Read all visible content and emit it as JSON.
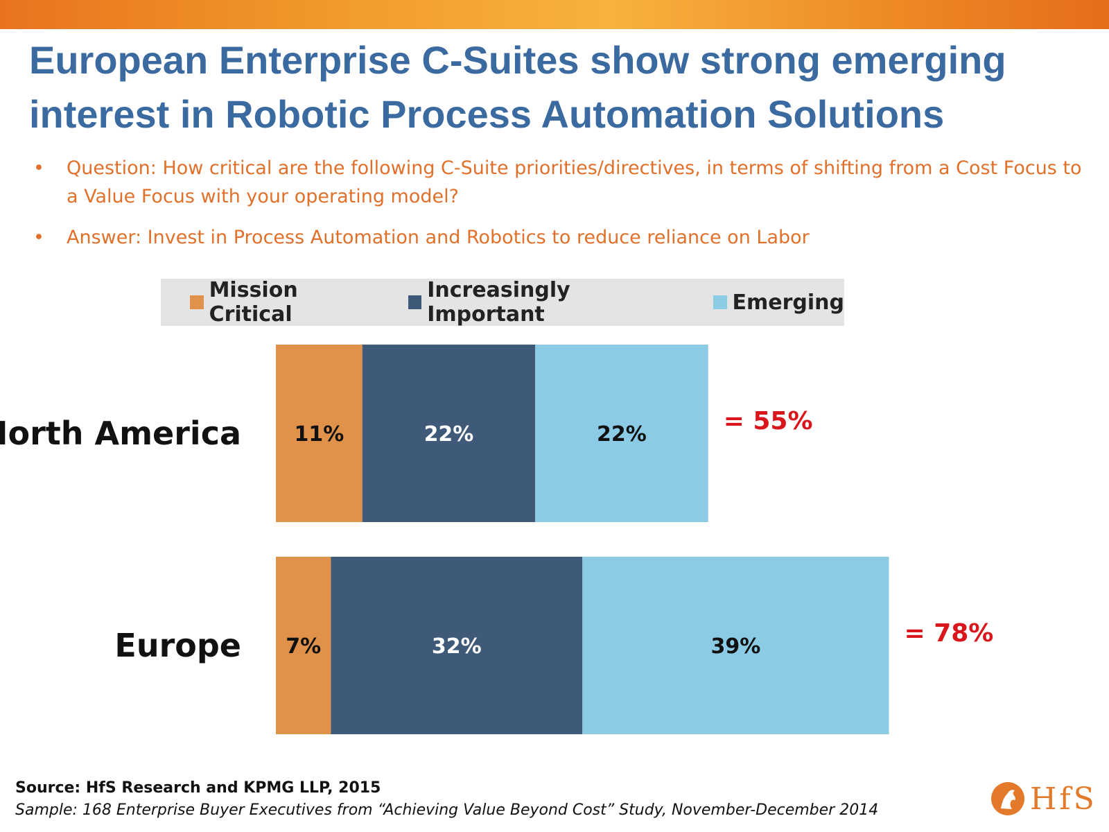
{
  "title": "European Enterprise C-Suites show strong emerging interest in Robotic Process Automation Solutions",
  "bullets": [
    "Question: How critical are the following C-Suite priorities/directives, in terms of shifting from a Cost Focus to a Value Focus with your operating model?",
    "Answer: Invest in Process Automation and Robotics to reduce reliance on Labor"
  ],
  "bullet_symbol": "•",
  "source": "Source:  HfS Research and KPMG LLP, 2015",
  "sample": "Sample: 168 Enterprise Buyer Executives from “Achieving Value Beyond Cost” Study, November-December 2014",
  "logo": {
    "text": "HfS",
    "icon": "horse-head-icon"
  },
  "colors": {
    "mission_critical": "#e0914a",
    "increasingly_important": "#3f5978",
    "emerging": "#8ccbe6",
    "title": "#3a6aa0",
    "bullet_text": "#e0702a",
    "total": "#d9161c"
  },
  "chart_data": {
    "type": "bar",
    "orientation": "horizontal",
    "stacked": true,
    "categories": [
      "North America",
      "Europe"
    ],
    "series": [
      {
        "name": "Mission Critical",
        "values": [
          11,
          7
        ],
        "labels": [
          "11%",
          "7%"
        ],
        "color": "#e0914a",
        "label_color": "#111111"
      },
      {
        "name": "Increasingly Important",
        "values": [
          22,
          32
        ],
        "labels": [
          "22%",
          "32%"
        ],
        "color": "#3f5978",
        "label_color": "#ffffff"
      },
      {
        "name": "Emerging",
        "values": [
          22,
          39
        ],
        "labels": [
          "22%",
          "39%"
        ],
        "color": "#8ccbe6",
        "label_color": "#111111"
      }
    ],
    "totals": [
      "= 55%",
      "= 78%"
    ],
    "legend_position": "top",
    "grid": false,
    "xlim": [
      0,
      78
    ]
  }
}
